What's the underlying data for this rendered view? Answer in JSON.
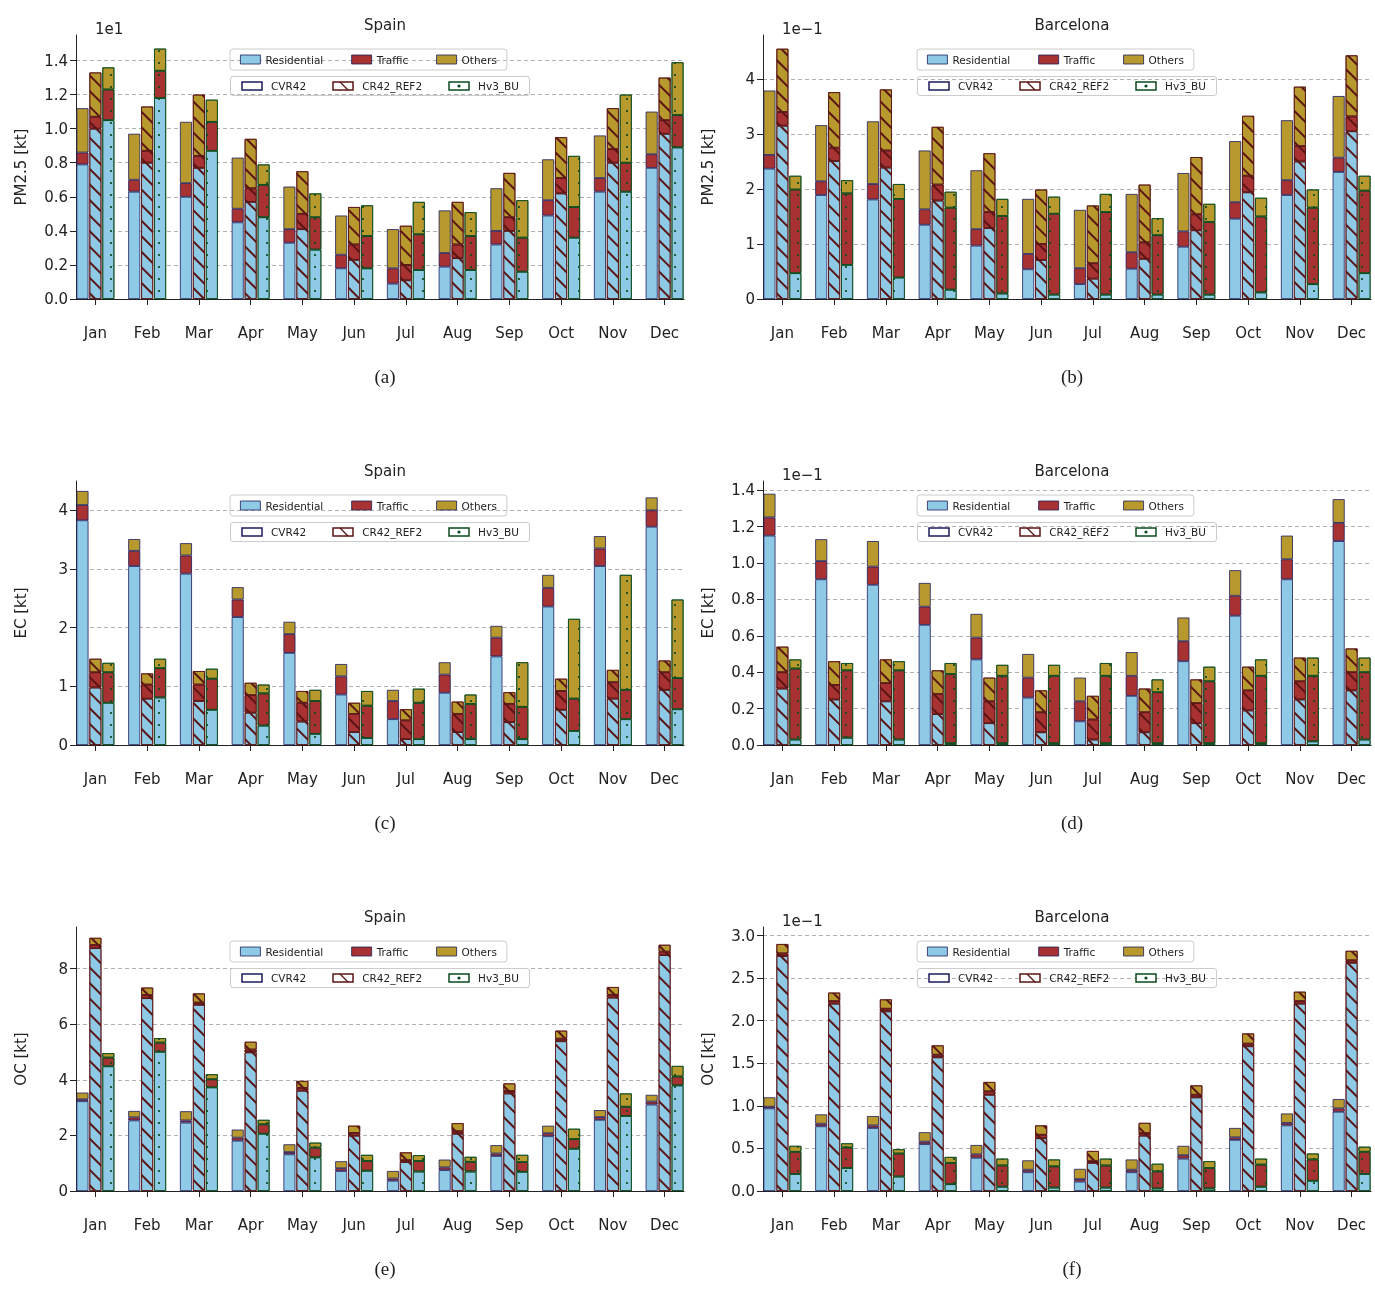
{
  "chart_data": [
    {
      "type": "bar",
      "title": "Spain",
      "ylabel": "PM2.5 [kt]",
      "xlabel": "(a)",
      "annotations": [
        "CVR42",
        "CR42_REF2",
        "Hv3_BU",
        "1e1"
      ],
      "stacked": true,
      "legend": "top",
      "grid": "y",
      "categories": [
        null,
        "Jan",
        null,
        null,
        null,
        "Feb",
        null,
        null,
        null,
        "Mar",
        null,
        null,
        null,
        "Apr",
        null,
        null,
        null,
        "May",
        null,
        null,
        null,
        "Jun",
        null,
        null,
        null,
        "Jul",
        null,
        null,
        null,
        "Aug",
        null,
        null,
        null,
        "Sep",
        null,
        null,
        null,
        "Oct",
        null,
        null,
        null,
        "Nov",
        null,
        null,
        null,
        "Dec",
        null
      ],
      "ylim": [
        0,
        1.55
      ],
      "yticks": [
        {
          "value": 0,
          "label": "0.0"
        },
        0.2,
        0.4,
        0.6,
        0.8,
        {
          "value": 1,
          "label": "1.0"
        },
        1.2,
        1.4
      ],
      "series": [
        {
          "name": "Residential",
          "color": "#8ecae6",
          "values": [
            0.79,
            1.0,
            1.05,
            null,
            0.63,
            0.8,
            1.18,
            null,
            0.6,
            0.77,
            0.87,
            null,
            0.45,
            0.57,
            0.48,
            null,
            0.33,
            0.41,
            0.29,
            null,
            0.18,
            0.23,
            0.18,
            null,
            0.09,
            0.11,
            0.17,
            null,
            0.19,
            0.24,
            0.17,
            null,
            0.32,
            0.4,
            0.16,
            null,
            0.49,
            0.62,
            0.36,
            null,
            0.63,
            0.8,
            0.63,
            null,
            0.77,
            0.97,
            0.89
          ]
        },
        {
          "name": "Traffic",
          "color": "#a83232",
          "values": [
            0.07,
            0.07,
            0.18,
            null,
            0.07,
            0.07,
            0.16,
            null,
            0.08,
            0.07,
            0.17,
            null,
            0.08,
            0.08,
            0.19,
            null,
            0.08,
            0.09,
            0.19,
            null,
            0.08,
            0.09,
            0.19,
            null,
            0.09,
            0.09,
            0.21,
            null,
            0.08,
            0.08,
            0.2,
            null,
            0.08,
            0.08,
            0.2,
            null,
            0.09,
            0.09,
            0.18,
            null,
            0.08,
            0.08,
            0.17,
            null,
            0.08,
            0.08,
            0.19
          ]
        },
        {
          "name": "Others",
          "color": "#b8992e",
          "values": [
            0.26,
            0.26,
            0.13,
            null,
            0.27,
            0.26,
            0.13,
            null,
            0.36,
            0.36,
            0.13,
            null,
            0.3,
            0.29,
            0.12,
            null,
            0.25,
            0.25,
            0.14,
            null,
            0.23,
            0.22,
            0.18,
            null,
            0.23,
            0.23,
            0.19,
            null,
            0.25,
            0.25,
            0.14,
            null,
            0.25,
            0.26,
            0.22,
            null,
            0.24,
            0.24,
            0.3,
            null,
            0.25,
            0.24,
            0.4,
            null,
            0.25,
            0.25,
            0.31
          ]
        }
      ]
    },
    {
      "type": "bar",
      "title": "Barcelona",
      "ylabel": "PM2.5 [kt]",
      "xlabel": "(b)",
      "annotations": [
        "CVR42",
        "CR42_REF2",
        "Hv3_BU",
        "1e−1"
      ],
      "stacked": true,
      "legend": "top",
      "grid": "y",
      "categories": [
        null,
        "Jan",
        null,
        null,
        null,
        "Feb",
        null,
        null,
        null,
        "Mar",
        null,
        null,
        null,
        "Apr",
        null,
        null,
        null,
        "May",
        null,
        null,
        null,
        "Jun",
        null,
        null,
        null,
        "Jul",
        null,
        null,
        null,
        "Aug",
        null,
        null,
        null,
        "Sep",
        null,
        null,
        null,
        "Oct",
        null,
        null,
        null,
        "Nov",
        null,
        null,
        null,
        "Dec",
        null
      ],
      "ylim": [
        0,
        4.8
      ],
      "yticks": [
        0,
        1,
        2,
        3,
        4
      ],
      "series": [
        {
          "name": "Residential",
          "color": "#8ecae6",
          "values": [
            2.37,
            3.15,
            0.47,
            null,
            1.89,
            2.51,
            0.62,
            null,
            1.81,
            2.39,
            0.39,
            null,
            1.35,
            1.79,
            0.17,
            null,
            0.97,
            1.29,
            0.1,
            null,
            0.54,
            0.71,
            0.08,
            null,
            0.27,
            0.37,
            0.08,
            null,
            0.55,
            0.73,
            0.08,
            null,
            0.95,
            1.25,
            0.08,
            null,
            1.46,
            1.94,
            0.12,
            null,
            1.89,
            2.5,
            0.27,
            null,
            2.31,
            3.05,
            0.47
          ]
        },
        {
          "name": "Traffic",
          "color": "#a83232",
          "values": [
            0.25,
            0.25,
            1.52,
            null,
            0.25,
            0.24,
            1.3,
            null,
            0.28,
            0.31,
            1.43,
            null,
            0.28,
            0.29,
            1.49,
            null,
            0.3,
            0.29,
            1.41,
            null,
            0.28,
            0.29,
            1.47,
            null,
            0.29,
            0.28,
            1.5,
            null,
            0.3,
            0.3,
            1.08,
            null,
            0.28,
            0.29,
            1.32,
            null,
            0.3,
            0.3,
            1.38,
            null,
            0.27,
            0.28,
            1.39,
            null,
            0.26,
            0.27,
            1.5
          ]
        },
        {
          "name": "Others",
          "color": "#b8992e",
          "values": [
            1.17,
            1.15,
            0.25,
            null,
            1.02,
            1.01,
            0.24,
            null,
            1.14,
            1.11,
            0.27,
            null,
            1.07,
            1.05,
            0.29,
            null,
            1.07,
            1.07,
            0.31,
            null,
            1.0,
            0.99,
            0.31,
            null,
            1.06,
            1.05,
            0.33,
            null,
            1.06,
            1.05,
            0.31,
            null,
            1.06,
            1.04,
            0.33,
            null,
            1.11,
            1.09,
            0.34,
            null,
            1.09,
            1.08,
            0.33,
            null,
            1.12,
            1.11,
            0.27
          ]
        }
      ]
    },
    {
      "type": "bar",
      "title": "Spain",
      "ylabel": "EC [kt]",
      "xlabel": "(c)",
      "annotations": [
        "CVR42",
        "CR42_REF2",
        "Hv3_BU"
      ],
      "stacked": true,
      "legend": "top",
      "grid": "y",
      "categories": [
        null,
        "Jan",
        null,
        null,
        null,
        "Feb",
        null,
        null,
        null,
        "Mar",
        null,
        null,
        null,
        "Apr",
        null,
        null,
        null,
        "May",
        null,
        null,
        null,
        "Jun",
        null,
        null,
        null,
        "Jul",
        null,
        null,
        null,
        "Aug",
        null,
        null,
        null,
        "Sep",
        null,
        null,
        null,
        "Oct",
        null,
        null,
        null,
        "Nov",
        null,
        null,
        null,
        "Dec",
        null
      ],
      "ylim": [
        0,
        4.5
      ],
      "yticks": [
        0,
        1,
        2,
        3,
        4
      ],
      "series": [
        {
          "name": "Residential",
          "color": "#8ecae6",
          "values": [
            3.83,
            0.98,
            0.72,
            null,
            3.05,
            0.79,
            0.81,
            null,
            2.92,
            0.75,
            0.6,
            null,
            2.18,
            0.55,
            0.33,
            null,
            1.57,
            0.4,
            0.19,
            null,
            0.86,
            0.22,
            0.12,
            null,
            0.44,
            0.1,
            0.1,
            null,
            0.89,
            0.22,
            0.1,
            null,
            1.51,
            0.39,
            0.1,
            null,
            2.36,
            0.6,
            0.24,
            null,
            3.05,
            0.79,
            0.44,
            null,
            3.72,
            0.94,
            0.61
          ]
        },
        {
          "name": "Traffic",
          "color": "#a83232",
          "values": [
            0.26,
            0.26,
            0.52,
            null,
            0.26,
            0.24,
            0.5,
            null,
            0.31,
            0.28,
            0.53,
            null,
            0.3,
            0.3,
            0.55,
            null,
            0.32,
            0.32,
            0.56,
            null,
            0.31,
            0.31,
            0.55,
            null,
            0.31,
            0.32,
            0.62,
            null,
            0.31,
            0.31,
            0.6,
            null,
            0.32,
            0.31,
            0.55,
            null,
            0.32,
            0.32,
            0.55,
            null,
            0.3,
            0.28,
            0.5,
            null,
            0.28,
            0.3,
            0.53
          ]
        },
        {
          "name": "Others",
          "color": "#b8992e",
          "values": [
            0.24,
            0.23,
            0.16,
            null,
            0.2,
            0.19,
            0.16,
            null,
            0.21,
            0.23,
            0.17,
            null,
            0.21,
            0.21,
            0.15,
            null,
            0.21,
            0.2,
            0.19,
            null,
            0.21,
            0.19,
            0.25,
            null,
            0.19,
            0.19,
            0.24,
            null,
            0.21,
            0.21,
            0.16,
            null,
            0.2,
            0.2,
            0.76,
            null,
            0.22,
            0.21,
            1.36,
            null,
            0.21,
            0.21,
            1.96,
            null,
            0.22,
            0.2,
            1.34
          ]
        }
      ]
    },
    {
      "type": "bar",
      "title": "Barcelona",
      "ylabel": "EC [kt]",
      "xlabel": "(d)",
      "annotations": [
        "CVR42",
        "CR42_REF2",
        "Hv3_BU",
        "1e−1"
      ],
      "stacked": true,
      "legend": "top",
      "grid": "y",
      "categories": [
        null,
        "Jan",
        null,
        null,
        null,
        "Feb",
        null,
        null,
        null,
        "Mar",
        null,
        null,
        null,
        "Apr",
        null,
        null,
        null,
        "May",
        null,
        null,
        null,
        "Jun",
        null,
        null,
        null,
        "Jul",
        null,
        null,
        null,
        "Aug",
        null,
        null,
        null,
        "Sep",
        null,
        null,
        null,
        "Oct",
        null,
        null,
        null,
        "Nov",
        null,
        null,
        null,
        "Dec",
        null
      ],
      "ylim": [
        0,
        1.45
      ],
      "yticks": [
        {
          "value": 0,
          "label": "0.0"
        },
        0.2,
        0.4,
        0.6,
        0.8,
        {
          "value": 1,
          "label": "1.0"
        },
        1.2,
        1.4
      ],
      "series": [
        {
          "name": "Residential",
          "color": "#8ecae6",
          "values": [
            1.15,
            0.31,
            0.03,
            null,
            0.91,
            0.25,
            0.04,
            null,
            0.88,
            0.24,
            0.03,
            null,
            0.66,
            0.17,
            0.01,
            null,
            0.47,
            0.12,
            0.01,
            null,
            0.26,
            0.07,
            0.01,
            null,
            0.13,
            0.03,
            0.01,
            null,
            0.27,
            0.07,
            0.01,
            null,
            0.46,
            0.12,
            0.01,
            null,
            0.71,
            0.19,
            0.01,
            null,
            0.91,
            0.25,
            0.02,
            null,
            1.12,
            0.3,
            0.03
          ]
        },
        {
          "name": "Traffic",
          "color": "#a83232",
          "values": [
            0.1,
            0.09,
            0.39,
            null,
            0.1,
            0.08,
            0.37,
            null,
            0.1,
            0.1,
            0.38,
            null,
            0.1,
            0.11,
            0.38,
            null,
            0.12,
            0.12,
            0.37,
            null,
            0.11,
            0.11,
            0.37,
            null,
            0.11,
            0.11,
            0.37,
            null,
            0.11,
            0.11,
            0.28,
            null,
            0.11,
            0.11,
            0.34,
            null,
            0.11,
            0.11,
            0.37,
            null,
            0.11,
            0.1,
            0.36,
            null,
            0.1,
            0.1,
            0.37
          ]
        },
        {
          "name": "Others",
          "color": "#b8992e",
          "values": [
            0.13,
            0.14,
            0.05,
            null,
            0.12,
            0.13,
            0.04,
            null,
            0.14,
            0.13,
            0.05,
            null,
            0.13,
            0.13,
            0.06,
            null,
            0.13,
            0.13,
            0.06,
            null,
            0.13,
            0.12,
            0.06,
            null,
            0.13,
            0.13,
            0.07,
            null,
            0.13,
            0.13,
            0.07,
            null,
            0.13,
            0.13,
            0.08,
            null,
            0.14,
            0.13,
            0.09,
            null,
            0.13,
            0.13,
            0.1,
            null,
            0.13,
            0.13,
            0.08
          ]
        }
      ]
    },
    {
      "type": "bar",
      "title": "Spain",
      "ylabel": "OC [kt]",
      "xlabel": "(e)",
      "annotations": [
        "CVR42",
        "CR42_REF2",
        "Hv3_BU"
      ],
      "stacked": true,
      "legend": "top",
      "grid": "y",
      "categories": [
        null,
        "Jan",
        null,
        null,
        null,
        "Feb",
        null,
        null,
        null,
        "Mar",
        null,
        null,
        null,
        "Apr",
        null,
        null,
        null,
        "May",
        null,
        null,
        null,
        "Jun",
        null,
        null,
        null,
        "Jul",
        null,
        null,
        null,
        "Aug",
        null,
        null,
        null,
        "Sep",
        null,
        null,
        null,
        "Oct",
        null,
        null,
        null,
        "Nov",
        null,
        null,
        null,
        "Dec",
        null
      ],
      "ylim": [
        0,
        9.5
      ],
      "yticks": [
        0,
        2,
        4,
        6,
        8
      ],
      "series": [
        {
          "name": "Residential",
          "color": "#8ecae6",
          "values": [
            3.23,
            8.74,
            4.49,
            null,
            2.54,
            6.94,
            5.01,
            null,
            2.46,
            6.7,
            3.73,
            null,
            1.81,
            4.99,
            2.06,
            null,
            1.32,
            3.61,
            1.21,
            null,
            0.72,
            1.99,
            0.73,
            null,
            0.37,
            1.04,
            0.7,
            null,
            0.75,
            2.06,
            0.7,
            null,
            1.26,
            3.51,
            0.69,
            null,
            1.97,
            5.39,
            1.52,
            null,
            2.56,
            6.96,
            2.7,
            null,
            3.11,
            8.49,
            3.8
          ]
        },
        {
          "name": "Traffic",
          "color": "#a83232",
          "values": [
            0.07,
            0.11,
            0.31,
            null,
            0.11,
            0.11,
            0.33,
            null,
            0.08,
            0.08,
            0.29,
            null,
            0.11,
            0.1,
            0.34,
            null,
            0.08,
            0.1,
            0.35,
            null,
            0.1,
            0.1,
            0.35,
            null,
            0.08,
            0.07,
            0.38,
            null,
            0.1,
            0.09,
            0.35,
            null,
            0.09,
            0.09,
            0.35,
            null,
            0.11,
            0.09,
            0.35,
            null,
            0.1,
            0.1,
            0.33,
            null,
            0.11,
            0.12,
            0.32
          ]
        },
        {
          "name": "Others",
          "color": "#b8992e",
          "values": [
            0.24,
            0.26,
            0.16,
            null,
            0.23,
            0.27,
            0.16,
            null,
            0.33,
            0.33,
            0.18,
            null,
            0.29,
            0.28,
            0.16,
            null,
            0.28,
            0.25,
            0.18,
            null,
            0.25,
            0.26,
            0.22,
            null,
            0.27,
            0.28,
            0.21,
            null,
            0.28,
            0.29,
            0.18,
            null,
            0.3,
            0.27,
            0.26,
            null,
            0.27,
            0.29,
            0.37,
            null,
            0.25,
            0.28,
            0.48,
            null,
            0.24,
            0.25,
            0.38
          ]
        }
      ]
    },
    {
      "type": "bar",
      "title": "Barcelona",
      "ylabel": "OC [kt]",
      "xlabel": "(f)",
      "annotations": [
        "CVR42",
        "CR42_REF2",
        "Hv3_BU",
        "1e−1"
      ],
      "stacked": true,
      "legend": "top",
      "grid": "y",
      "categories": [
        null,
        "Jan",
        null,
        null,
        null,
        "Feb",
        null,
        null,
        null,
        "Mar",
        null,
        null,
        null,
        "Apr",
        null,
        null,
        null,
        "May",
        null,
        null,
        null,
        "Jun",
        null,
        null,
        null,
        "Jul",
        null,
        null,
        null,
        "Aug",
        null,
        null,
        null,
        "Sep",
        null,
        null,
        null,
        "Oct",
        null,
        null,
        null,
        "Nov",
        null,
        null,
        null,
        "Dec",
        null
      ],
      "ylim": [
        0,
        3.1
      ],
      "yticks": [
        {
          "value": 0,
          "label": "0.0"
        },
        0.5,
        {
          "value": 1,
          "label": "1.0"
        },
        1.5,
        {
          "value": 2,
          "label": "2.0"
        },
        2.5,
        {
          "value": 3,
          "label": "3.0"
        }
      ],
      "series": [
        {
          "name": "Residential",
          "color": "#8ecae6",
          "values": [
            0.97,
            2.76,
            0.2,
            null,
            0.76,
            2.2,
            0.27,
            null,
            0.74,
            2.11,
            0.17,
            null,
            0.55,
            1.57,
            0.08,
            null,
            0.39,
            1.13,
            0.05,
            null,
            0.22,
            0.62,
            0.04,
            null,
            0.11,
            0.33,
            0.04,
            null,
            0.22,
            0.65,
            0.03,
            null,
            0.38,
            1.1,
            0.03,
            null,
            0.6,
            1.7,
            0.05,
            null,
            0.77,
            2.2,
            0.12,
            null,
            0.93,
            2.68,
            0.2
          ]
        },
        {
          "name": "Traffic",
          "color": "#a83232",
          "values": [
            0.02,
            0.03,
            0.26,
            null,
            0.03,
            0.03,
            0.24,
            null,
            0.03,
            0.03,
            0.27,
            null,
            0.03,
            0.03,
            0.25,
            null,
            0.04,
            0.04,
            0.25,
            null,
            0.03,
            0.04,
            0.25,
            null,
            0.03,
            0.02,
            0.26,
            null,
            0.03,
            0.03,
            0.2,
            null,
            0.04,
            0.03,
            0.24,
            null,
            0.03,
            0.03,
            0.26,
            null,
            0.03,
            0.03,
            0.25,
            null,
            0.04,
            0.03,
            0.26
          ]
        },
        {
          "name": "Others",
          "color": "#b8992e",
          "values": [
            0.11,
            0.11,
            0.07,
            null,
            0.11,
            0.1,
            0.05,
            null,
            0.11,
            0.11,
            0.05,
            null,
            0.11,
            0.11,
            0.07,
            null,
            0.11,
            0.11,
            0.08,
            null,
            0.11,
            0.11,
            0.08,
            null,
            0.12,
            0.12,
            0.08,
            null,
            0.12,
            0.12,
            0.09,
            null,
            0.11,
            0.11,
            0.08,
            null,
            0.11,
            0.12,
            0.07,
            null,
            0.11,
            0.11,
            0.07,
            null,
            0.11,
            0.11,
            0.06
          ]
        }
      ]
    }
  ]
}
